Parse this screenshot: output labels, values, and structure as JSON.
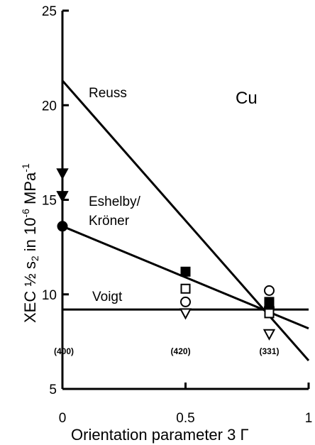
{
  "chart_data": {
    "type": "line",
    "xlabel": "Orientation parameter 3 Γ",
    "ylabel": "XEC ½ s₂ in 10⁻⁶MPa⁻¹",
    "xlim": [
      0,
      1
    ],
    "ylim": [
      5,
      25
    ],
    "x_ticks": [
      0,
      0.5,
      1
    ],
    "x_tick_labels": [
      "0",
      "0.5",
      "1"
    ],
    "y_ticks": [
      5,
      10,
      15,
      20,
      25
    ],
    "y_tick_labels": [
      "5",
      "10",
      "15",
      "20",
      "25"
    ],
    "grid": false,
    "annotations": {
      "material": "Cu",
      "reflections": [
        {
          "label": "(400)",
          "x": 0
        },
        {
          "label": "(420)",
          "x": 0.48
        },
        {
          "label": "(331)",
          "x": 0.84
        }
      ]
    },
    "series": [
      {
        "name": "Reuss",
        "kind": "line",
        "x": [
          0,
          1
        ],
        "y": [
          21.3,
          6.5
        ]
      },
      {
        "name": "Eshelby/\nKröner",
        "kind": "line",
        "x": [
          0,
          1
        ],
        "y": [
          13.6,
          8.2
        ]
      },
      {
        "name": "Voigt",
        "kind": "line",
        "x": [
          0,
          1
        ],
        "y": [
          9.2,
          9.2
        ]
      }
    ],
    "points": [
      {
        "shape": "triangle-down-filled",
        "x": 0,
        "y": 16.4
      },
      {
        "shape": "triangle-down-filled",
        "x": 0,
        "y": 15.2
      },
      {
        "shape": "circle-filled",
        "x": 0,
        "y": 13.6
      },
      {
        "shape": "square-filled",
        "x": 0.5,
        "y": 11.2
      },
      {
        "shape": "square-open",
        "x": 0.5,
        "y": 10.3
      },
      {
        "shape": "circle-open",
        "x": 0.5,
        "y": 9.6
      },
      {
        "shape": "triangle-down-open",
        "x": 0.5,
        "y": 9.0
      },
      {
        "shape": "circle-open",
        "x": 0.84,
        "y": 10.2
      },
      {
        "shape": "square-filled",
        "x": 0.84,
        "y": 9.6
      },
      {
        "shape": "circle-filled",
        "x": 0.84,
        "y": 9.3
      },
      {
        "shape": "square-open",
        "x": 0.84,
        "y": 9.0
      },
      {
        "shape": "triangle-down-open",
        "x": 0.84,
        "y": 7.9
      }
    ]
  }
}
